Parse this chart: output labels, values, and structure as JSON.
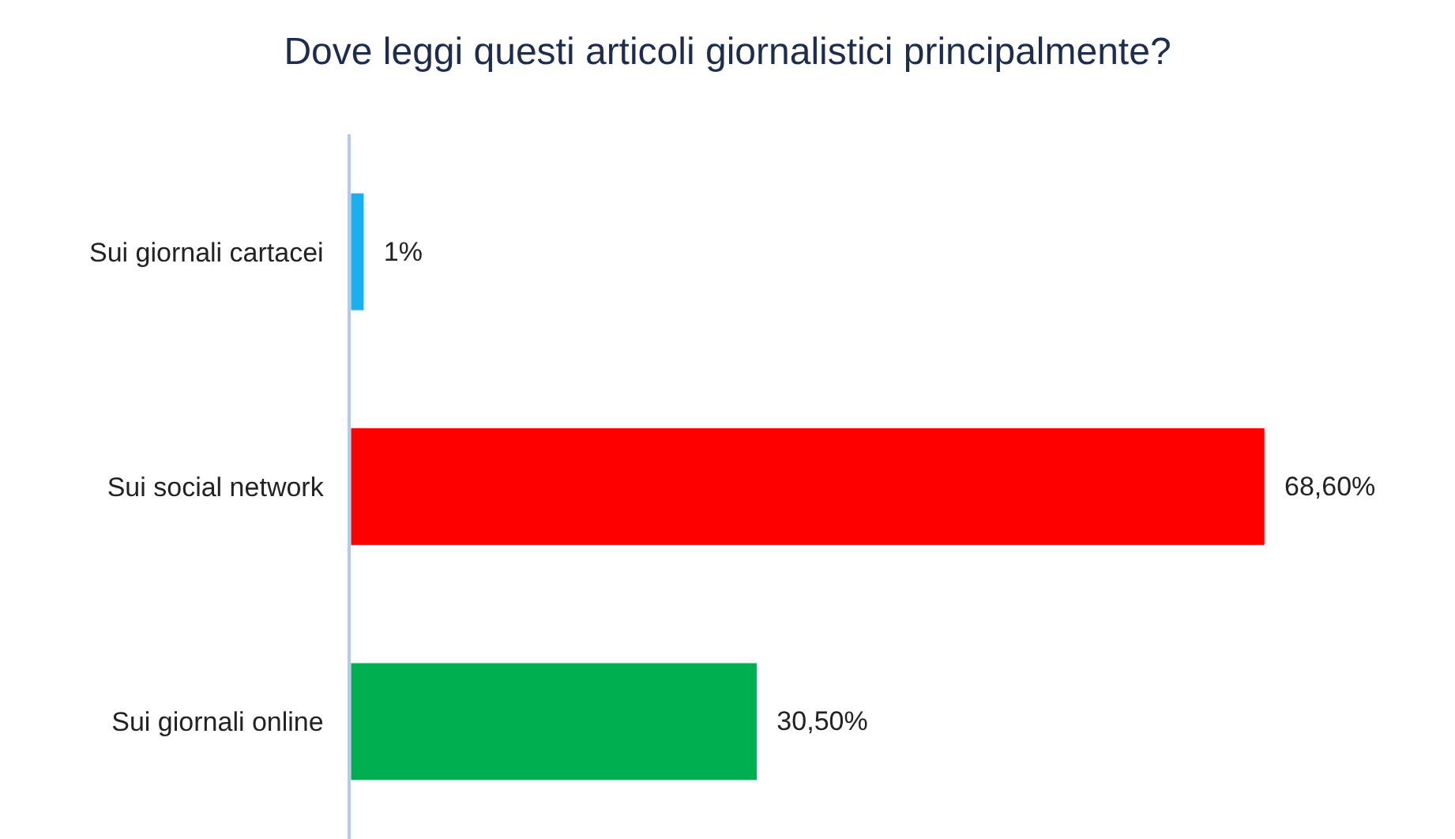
{
  "chart_data": {
    "type": "bar",
    "orientation": "horizontal",
    "title": "Dove leggi questi articoli giornalistici principalmente?",
    "categories": [
      "Sui giornali cartacei",
      "Sui social network",
      "Sui giornali online"
    ],
    "values": [
      1,
      68.6,
      30.5
    ],
    "colors": [
      "#18b0f0",
      "#ff0000",
      "#00b050"
    ],
    "value_labels": [
      "1%",
      "68,60%",
      "30,50%"
    ]
  }
}
